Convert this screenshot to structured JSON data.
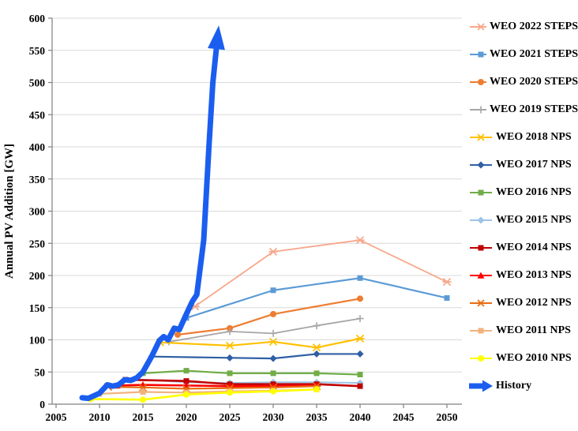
{
  "chart_data": {
    "type": "line",
    "title": "",
    "xlabel": "",
    "ylabel": "Annual PV Addition [GW]",
    "xlim": [
      2005,
      2052
    ],
    "ylim": [
      0,
      600
    ],
    "x_ticks": [
      2005,
      2010,
      2015,
      2020,
      2025,
      2030,
      2035,
      2040,
      2045,
      2050
    ],
    "y_ticks": [
      0,
      50,
      100,
      150,
      200,
      250,
      300,
      350,
      400,
      450,
      500,
      550,
      600
    ],
    "grid": "horizontal",
    "legend_position": "right",
    "series": [
      {
        "name": "WEO 2022 STEPS",
        "color": "#F7A88C",
        "marker": "star",
        "width": 1.8,
        "points": [
          [
            2021,
            152
          ],
          [
            2030,
            237
          ],
          [
            2040,
            255
          ],
          [
            2050,
            190
          ]
        ]
      },
      {
        "name": "WEO 2021 STEPS",
        "color": "#5B9BD5",
        "marker": "square",
        "width": 2.2,
        "points": [
          [
            2020,
            134
          ],
          [
            2030,
            177
          ],
          [
            2040,
            196
          ],
          [
            2050,
            165
          ]
        ]
      },
      {
        "name": "WEO 2020 STEPS",
        "color": "#ED7D31",
        "marker": "circle",
        "width": 2.2,
        "points": [
          [
            2019,
            108
          ],
          [
            2025,
            118
          ],
          [
            2030,
            140
          ],
          [
            2040,
            164
          ]
        ]
      },
      {
        "name": "WEO 2019 STEPS",
        "color": "#A6A6A6",
        "marker": "plus",
        "width": 1.8,
        "points": [
          [
            2018,
            97
          ],
          [
            2025,
            113
          ],
          [
            2030,
            110
          ],
          [
            2035,
            122
          ],
          [
            2040,
            133
          ]
        ]
      },
      {
        "name": "WEO 2018 NPS",
        "color": "#FFC000",
        "marker": "star",
        "width": 2.2,
        "points": [
          [
            2017,
            96
          ],
          [
            2025,
            91
          ],
          [
            2030,
            97
          ],
          [
            2035,
            88
          ],
          [
            2040,
            102
          ]
        ]
      },
      {
        "name": "WEO 2017 NPS",
        "color": "#2F5FA5",
        "marker": "diamond",
        "width": 2.2,
        "points": [
          [
            2016,
            74
          ],
          [
            2025,
            72
          ],
          [
            2030,
            71
          ],
          [
            2035,
            78
          ],
          [
            2040,
            78
          ]
        ]
      },
      {
        "name": "WEO 2016 NPS",
        "color": "#70AD47",
        "marker": "square",
        "width": 2.2,
        "points": [
          [
            2015,
            48
          ],
          [
            2020,
            52
          ],
          [
            2025,
            48
          ],
          [
            2030,
            48
          ],
          [
            2035,
            48
          ],
          [
            2040,
            46
          ]
        ]
      },
      {
        "name": "WEO 2015 NPS",
        "color": "#9DC3E6",
        "marker": "diamond",
        "width": 2.0,
        "points": [
          [
            2014,
            39
          ],
          [
            2020,
            34
          ],
          [
            2025,
            33
          ],
          [
            2030,
            34
          ],
          [
            2035,
            34
          ],
          [
            2040,
            33
          ]
        ]
      },
      {
        "name": "WEO 2014 NPS",
        "color": "#C00000",
        "marker": "square",
        "width": 2.6,
        "points": [
          [
            2013,
            38
          ],
          [
            2020,
            36
          ],
          [
            2025,
            31
          ],
          [
            2030,
            31
          ],
          [
            2035,
            31
          ],
          [
            2040,
            28
          ]
        ]
      },
      {
        "name": "WEO 2013 NPS",
        "color": "#FF0000",
        "marker": "triangle",
        "width": 2.6,
        "points": [
          [
            2012,
            29
          ],
          [
            2015,
            30
          ],
          [
            2020,
            29
          ],
          [
            2025,
            28
          ],
          [
            2030,
            28
          ],
          [
            2035,
            29
          ]
        ]
      },
      {
        "name": "WEO 2012 NPS",
        "color": "#E96B10",
        "marker": "star",
        "width": 2.2,
        "points": [
          [
            2011,
            27
          ],
          [
            2015,
            26
          ],
          [
            2020,
            24
          ],
          [
            2025,
            25
          ],
          [
            2030,
            26
          ],
          [
            2035,
            28
          ]
        ]
      },
      {
        "name": "WEO 2011 NPS",
        "color": "#F2B27E",
        "marker": "square",
        "width": 2.2,
        "points": [
          [
            2010,
            16
          ],
          [
            2015,
            19
          ],
          [
            2020,
            18
          ],
          [
            2025,
            20
          ],
          [
            2030,
            21
          ],
          [
            2035,
            23
          ]
        ]
      },
      {
        "name": "WEO 2010 NPS",
        "color": "#FFFF00",
        "marker": "circle",
        "width": 2.6,
        "points": [
          [
            2009,
            8
          ],
          [
            2015,
            7
          ],
          [
            2020,
            15
          ],
          [
            2025,
            18
          ],
          [
            2030,
            20
          ],
          [
            2035,
            23
          ]
        ]
      }
    ],
    "history": {
      "name": "History",
      "color": "#1B5EEF",
      "width": 7,
      "arrow": true,
      "points": [
        [
          2008,
          10
        ],
        [
          2008.7,
          9
        ],
        [
          2010,
          17
        ],
        [
          2010.9,
          30
        ],
        [
          2011.5,
          28
        ],
        [
          2012.2,
          30
        ],
        [
          2012.9,
          38
        ],
        [
          2013.6,
          37
        ],
        [
          2014.3,
          41
        ],
        [
          2015,
          50
        ],
        [
          2016,
          74
        ],
        [
          2016.9,
          99
        ],
        [
          2017.4,
          105
        ],
        [
          2017.9,
          100
        ],
        [
          2018.6,
          118
        ],
        [
          2019.2,
          116
        ],
        [
          2020,
          140
        ],
        [
          2020.7,
          160
        ],
        [
          2021.2,
          170
        ],
        [
          2022,
          255
        ],
        [
          2022.6,
          400
        ],
        [
          2023.05,
          500
        ],
        [
          2023.45,
          552
        ]
      ]
    }
  },
  "style_colors": {
    "grid": "#D9D9D9",
    "axis": "#808080",
    "background": "#FFFFFF",
    "text": "#000000"
  }
}
